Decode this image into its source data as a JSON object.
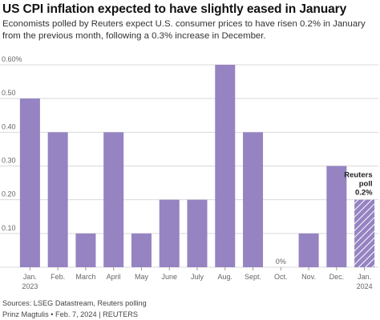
{
  "title": "US CPI inflation expected to have slightly eased in January",
  "subtitle": "Economists polled by Reuters expect U.S. consumer prices to have risen 0.2% in January from the previous month, following a 0.3% increase in December.",
  "footer": {
    "sources": "Sources: LSEG Datastream, Reuters polling",
    "credit": "Prinz Magtulis • Feb. 7, 2024 | REUTERS"
  },
  "colors": {
    "bar": "#9583c2",
    "grid": "#d9d9d9",
    "axis_text": "#666666"
  },
  "chart_data": {
    "type": "bar",
    "categories": [
      [
        "Jan.",
        "2023"
      ],
      [
        "Feb."
      ],
      [
        "March"
      ],
      [
        "April"
      ],
      [
        "May"
      ],
      [
        "June"
      ],
      [
        "July"
      ],
      [
        "Aug."
      ],
      [
        "Sept."
      ],
      [
        "Oct."
      ],
      [
        "Nov."
      ],
      [
        "Dec."
      ],
      [
        "Jan.",
        "2024"
      ]
    ],
    "values": [
      0.5,
      0.4,
      0.1,
      0.4,
      0.1,
      0.2,
      0.2,
      0.6,
      0.4,
      0.0,
      0.1,
      0.3,
      0.2
    ],
    "ylim": [
      0,
      0.6
    ],
    "yticks": [
      0.1,
      0.2,
      0.3,
      0.4,
      0.5,
      0.6
    ],
    "ytick_labels": [
      "0.10",
      "0.20",
      "0.30",
      "0.40",
      "0.50",
      "0.60%"
    ],
    "grid": true,
    "annotations": [
      {
        "category_index": 9,
        "text": "0%"
      },
      {
        "category_index": 12,
        "lines": [
          "Reuters",
          "poll",
          "0.2%"
        ],
        "hatched": true
      }
    ]
  }
}
